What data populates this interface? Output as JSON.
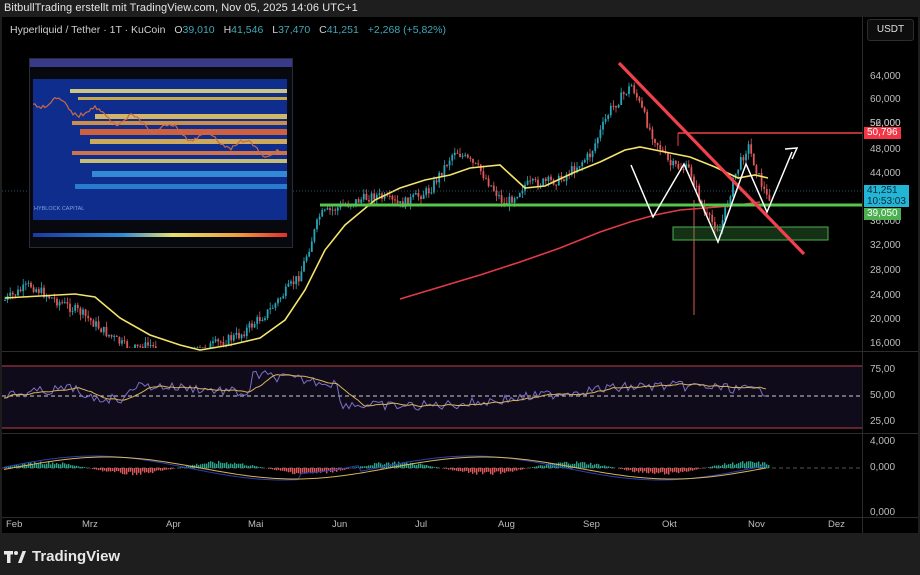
{
  "header": {
    "attribution": "BitbullTrading erstellt mit TradingView.com, Nov 05, 2025 14:06 UTC+1"
  },
  "legend": {
    "symbol": "Hyperliquid / Tether · 1T · KuCoin",
    "open_label": "O",
    "open": "39,010",
    "high_label": "H",
    "high": "41,546",
    "low_label": "L",
    "low": "37,470",
    "close_label": "C",
    "close": "41,251",
    "change": "+2,268 (+5,82%)"
  },
  "price_axis": {
    "currency": "USDT",
    "ticks": [
      "64,000",
      "60,000",
      "56,000",
      "52,000",
      "48,000",
      "44,000",
      "36,000",
      "32,000",
      "28,000",
      "24,000",
      "20,000",
      "16,000"
    ],
    "labels": {
      "resistance": {
        "value": "50,796",
        "color": "#f23645"
      },
      "last": {
        "value": "41,251",
        "countdown": "10:53:03",
        "color": "#22b5d6"
      },
      "support": {
        "value": "39,050",
        "color": "#4caf50"
      }
    }
  },
  "rsi_axis": {
    "ticks": [
      "75,00",
      "50,00",
      "25,00"
    ]
  },
  "macd_axis": {
    "ticks": [
      "4,000",
      "0,000"
    ]
  },
  "extra_axis": {
    "ticks": [
      "0,000"
    ]
  },
  "time_axis": {
    "months": [
      "Feb",
      "Mrz",
      "Apr",
      "Mai",
      "Jun",
      "Jul",
      "Aug",
      "Sep",
      "Okt",
      "Nov",
      "Dez"
    ]
  },
  "inset": {
    "title": "HYBLOCK CAPITAL"
  },
  "brand": {
    "name": "TradingView"
  },
  "colors": {
    "up": "#26a6b8",
    "down": "#e0585a",
    "ma_fast": "#f4e36a",
    "ma_slow": "#e23b45",
    "support": "#55c84a",
    "trendline": "#f0414c",
    "pattern": "#ffffff"
  },
  "chart_data": {
    "type": "candlestick",
    "title": "Hyperliquid / Tether · 1T · KuCoin",
    "ylabel": "USDT",
    "ylim": [
      16000,
      64000
    ],
    "x_ticks": [
      "Feb",
      "Mrz",
      "Apr",
      "Mai",
      "Jun",
      "Jul",
      "Aug",
      "Sep",
      "Okt",
      "Nov",
      "Dez"
    ],
    "ohlc_last": {
      "open": 39010,
      "high": 41546,
      "low": 37470,
      "close": 41251,
      "change": 2268,
      "change_pct": 5.82
    },
    "approx_close_path": [
      {
        "month": "Feb",
        "price": 25000
      },
      {
        "month": "Mrz",
        "price": 20000
      },
      {
        "month": "Apr",
        "price": 15500
      },
      {
        "month": "Mai",
        "price": 24000
      },
      {
        "month": "Jun",
        "price": 38000
      },
      {
        "month": "Jul",
        "price": 43000
      },
      {
        "month": "Aug",
        "price": 42000
      },
      {
        "month": "Sep",
        "price": 51000
      },
      {
        "month": "Sep-peak",
        "price": 59000
      },
      {
        "month": "Okt",
        "price": 38000
      },
      {
        "month": "Nov",
        "price": 41251
      }
    ],
    "annotations": {
      "horizontal_resistance": 50796,
      "horizontal_support": 39050,
      "demand_zone": [
        35000,
        37000
      ],
      "descending_trendline": "from Sep high to below Nov",
      "pattern": "W / double-bottom with projected up arrow"
    },
    "indicators": [
      "MA (yellow)",
      "MA (red, long)",
      "RSI 25/50/75",
      "MACD histogram"
    ]
  }
}
